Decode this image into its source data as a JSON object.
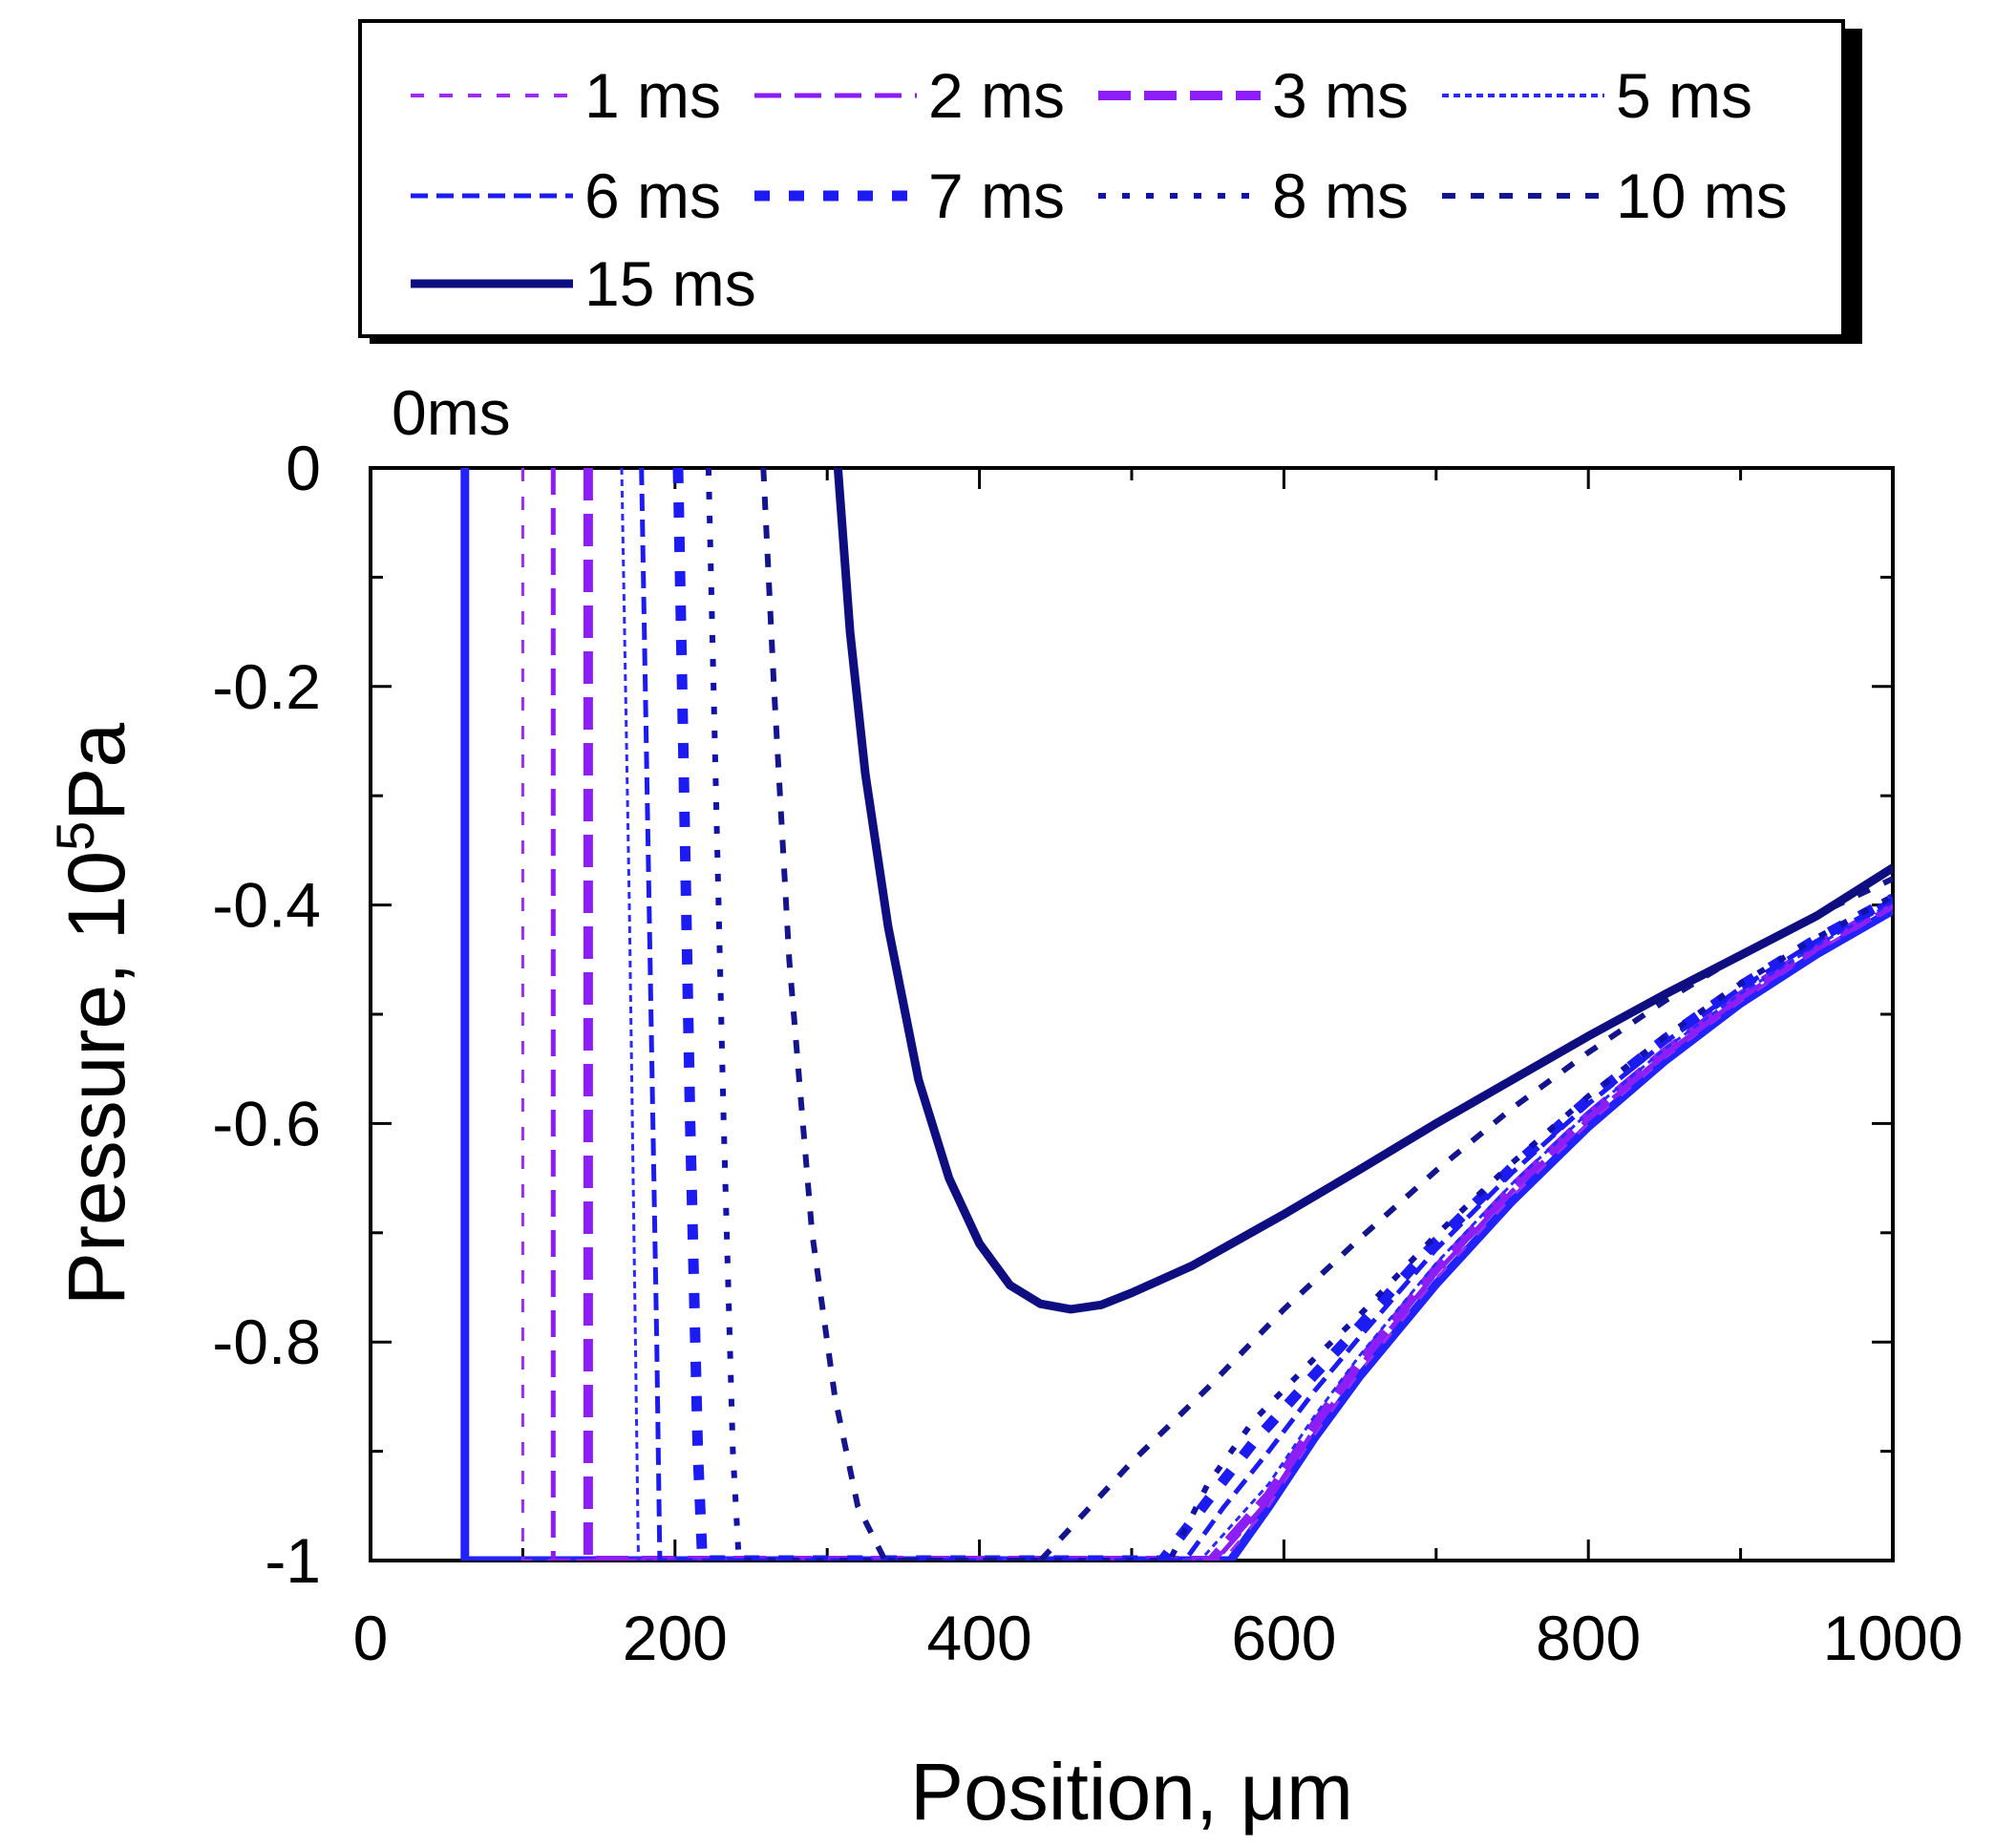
{
  "chart_data": {
    "type": "line",
    "xlabel": "Position, μm",
    "ylabel_main": "Pressure,  10",
    "ylabel_sup": "5",
    "ylabel_unit": "Pa",
    "xlim": [
      0,
      1000
    ],
    "ylim": [
      -1,
      0
    ],
    "xticks": [
      0,
      200,
      400,
      600,
      800,
      1000
    ],
    "xtick_labels": [
      "0",
      "200",
      "400",
      "600",
      "800",
      "1000"
    ],
    "yticks": [
      0,
      -0.2,
      -0.4,
      -0.6,
      -0.8,
      -1
    ],
    "ytick_labels": [
      "0",
      "-0.2",
      "-0.4",
      "-0.6",
      "-0.8",
      "-1"
    ],
    "grid": false,
    "legend_position": "top (above plot)",
    "annotations": [
      {
        "text": "0ms",
        "x": 62,
        "y": 0
      }
    ],
    "series": [
      {
        "name": "0ms",
        "color": "#2222ff",
        "dash": "solid",
        "width": 9,
        "legend": false,
        "points": [
          [
            62,
            0
          ],
          [
            62,
            -1
          ],
          [
            565,
            -1
          ],
          [
            590,
            -0.951
          ],
          [
            620,
            -0.888
          ],
          [
            650,
            -0.831
          ],
          [
            700,
            -0.747
          ],
          [
            750,
            -0.671
          ],
          [
            800,
            -0.603
          ],
          [
            850,
            -0.543
          ],
          [
            900,
            -0.49
          ],
          [
            950,
            -0.445
          ],
          [
            1000,
            -0.405
          ]
        ]
      },
      {
        "name": "1 ms",
        "color": "#9b2cf0",
        "dash": "14 16",
        "width": 3,
        "legend": true,
        "points": [
          [
            100,
            0
          ],
          [
            100,
            -1
          ],
          [
            560,
            -1
          ],
          [
            590,
            -0.95
          ],
          [
            620,
            -0.885
          ],
          [
            650,
            -0.827
          ],
          [
            700,
            -0.742
          ],
          [
            750,
            -0.667
          ],
          [
            800,
            -0.6
          ],
          [
            850,
            -0.54
          ],
          [
            900,
            -0.488
          ],
          [
            950,
            -0.442
          ],
          [
            1000,
            -0.403
          ]
        ]
      },
      {
        "name": "2 ms",
        "color": "#8a1cf4",
        "dash": "28 14",
        "width": 5,
        "legend": true,
        "points": [
          [
            120,
            0
          ],
          [
            120,
            -1
          ],
          [
            555,
            -1
          ],
          [
            590,
            -0.945
          ],
          [
            620,
            -0.88
          ],
          [
            650,
            -0.822
          ],
          [
            700,
            -0.737
          ],
          [
            750,
            -0.662
          ],
          [
            800,
            -0.596
          ],
          [
            850,
            -0.537
          ],
          [
            900,
            -0.485
          ],
          [
            950,
            -0.44
          ],
          [
            1000,
            -0.401
          ]
        ]
      },
      {
        "name": "3 ms",
        "color": "#8e1ef6",
        "dash": "34 14",
        "width": 10,
        "legend": true,
        "points": [
          [
            143,
            0
          ],
          [
            143,
            -1
          ],
          [
            552,
            -1
          ],
          [
            590,
            -0.94
          ],
          [
            620,
            -0.876
          ],
          [
            650,
            -0.818
          ],
          [
            700,
            -0.733
          ],
          [
            750,
            -0.659
          ],
          [
            800,
            -0.593
          ],
          [
            850,
            -0.535
          ],
          [
            900,
            -0.483
          ],
          [
            950,
            -0.438
          ],
          [
            1000,
            -0.399
          ]
        ]
      },
      {
        "name": "5 ms",
        "color": "#2a2aff",
        "dash": "7 5",
        "width": 3,
        "legend": true,
        "points": [
          [
            165,
            0
          ],
          [
            170,
            -0.4
          ],
          [
            174,
            -0.8
          ],
          [
            176,
            -1
          ],
          [
            545,
            -1
          ],
          [
            590,
            -0.93
          ],
          [
            620,
            -0.868
          ],
          [
            650,
            -0.812
          ],
          [
            700,
            -0.728
          ],
          [
            750,
            -0.655
          ],
          [
            800,
            -0.59
          ],
          [
            850,
            -0.532
          ],
          [
            900,
            -0.481
          ],
          [
            950,
            -0.437
          ],
          [
            1000,
            -0.398
          ]
        ]
      },
      {
        "name": "6 ms",
        "color": "#1c1cf2",
        "dash": "18 9",
        "width": 5,
        "legend": true,
        "points": [
          [
            178,
            0
          ],
          [
            183,
            -0.4
          ],
          [
            188,
            -0.8
          ],
          [
            190,
            -1
          ],
          [
            535,
            -1
          ],
          [
            560,
            -0.952
          ],
          [
            590,
            -0.9
          ],
          [
            620,
            -0.845
          ],
          [
            650,
            -0.795
          ],
          [
            700,
            -0.715
          ],
          [
            750,
            -0.645
          ],
          [
            800,
            -0.582
          ],
          [
            850,
            -0.526
          ],
          [
            900,
            -0.476
          ],
          [
            950,
            -0.433
          ],
          [
            1000,
            -0.395
          ]
        ]
      },
      {
        "name": "7 ms",
        "color": "#1c1cf2",
        "dash": "16 20",
        "width": 11,
        "legend": true,
        "points": [
          [
            202,
            0
          ],
          [
            206,
            -0.3
          ],
          [
            210,
            -0.6
          ],
          [
            215,
            -0.9
          ],
          [
            218,
            -1
          ],
          [
            520,
            -1
          ],
          [
            550,
            -0.945
          ],
          [
            580,
            -0.892
          ],
          [
            620,
            -0.83
          ],
          [
            650,
            -0.785
          ],
          [
            700,
            -0.708
          ],
          [
            750,
            -0.64
          ],
          [
            800,
            -0.578
          ],
          [
            850,
            -0.523
          ],
          [
            900,
            -0.474
          ],
          [
            950,
            -0.431
          ],
          [
            1000,
            -0.394
          ]
        ]
      },
      {
        "name": "8 ms",
        "color": "#1212a8",
        "dash": "8 17",
        "width": 6,
        "legend": true,
        "points": [
          [
            222,
            0
          ],
          [
            227,
            -0.3
          ],
          [
            232,
            -0.6
          ],
          [
            238,
            -0.9
          ],
          [
            242,
            -1
          ],
          [
            525,
            -1
          ],
          [
            550,
            -0.93
          ],
          [
            580,
            -0.872
          ],
          [
            620,
            -0.815
          ],
          [
            650,
            -0.775
          ],
          [
            700,
            -0.702
          ],
          [
            750,
            -0.636
          ],
          [
            800,
            -0.575
          ],
          [
            850,
            -0.521
          ],
          [
            900,
            -0.472
          ],
          [
            950,
            -0.43
          ],
          [
            1000,
            -0.392
          ]
        ]
      },
      {
        "name": "10 ms",
        "color": "#14148c",
        "dash": "14 16",
        "width": 6,
        "legend": true,
        "points": [
          [
            258,
            0
          ],
          [
            265,
            -0.2
          ],
          [
            275,
            -0.45
          ],
          [
            290,
            -0.7
          ],
          [
            305,
            -0.85
          ],
          [
            320,
            -0.95
          ],
          [
            338,
            -1
          ],
          [
            440,
            -1
          ],
          [
            470,
            -0.955
          ],
          [
            500,
            -0.91
          ],
          [
            550,
            -0.842
          ],
          [
            600,
            -0.77
          ],
          [
            650,
            -0.705
          ],
          [
            700,
            -0.643
          ],
          [
            750,
            -0.586
          ],
          [
            800,
            -0.535
          ],
          [
            850,
            -0.488
          ],
          [
            900,
            -0.446
          ],
          [
            950,
            -0.409
          ],
          [
            1000,
            -0.376
          ]
        ]
      },
      {
        "name": "15 ms",
        "color": "#0e0e80",
        "dash": "solid",
        "width": 9,
        "legend": true,
        "points": [
          [
            307,
            0
          ],
          [
            315,
            -0.15
          ],
          [
            325,
            -0.28
          ],
          [
            340,
            -0.42
          ],
          [
            360,
            -0.56
          ],
          [
            380,
            -0.65
          ],
          [
            400,
            -0.71
          ],
          [
            420,
            -0.748
          ],
          [
            440,
            -0.765
          ],
          [
            460,
            -0.77
          ],
          [
            480,
            -0.766
          ],
          [
            500,
            -0.755
          ],
          [
            540,
            -0.73
          ],
          [
            600,
            -0.683
          ],
          [
            650,
            -0.642
          ],
          [
            700,
            -0.6
          ],
          [
            750,
            -0.56
          ],
          [
            800,
            -0.52
          ],
          [
            850,
            -0.482
          ],
          [
            900,
            -0.446
          ],
          [
            950,
            -0.41
          ],
          [
            1000,
            -0.366
          ]
        ]
      }
    ]
  }
}
